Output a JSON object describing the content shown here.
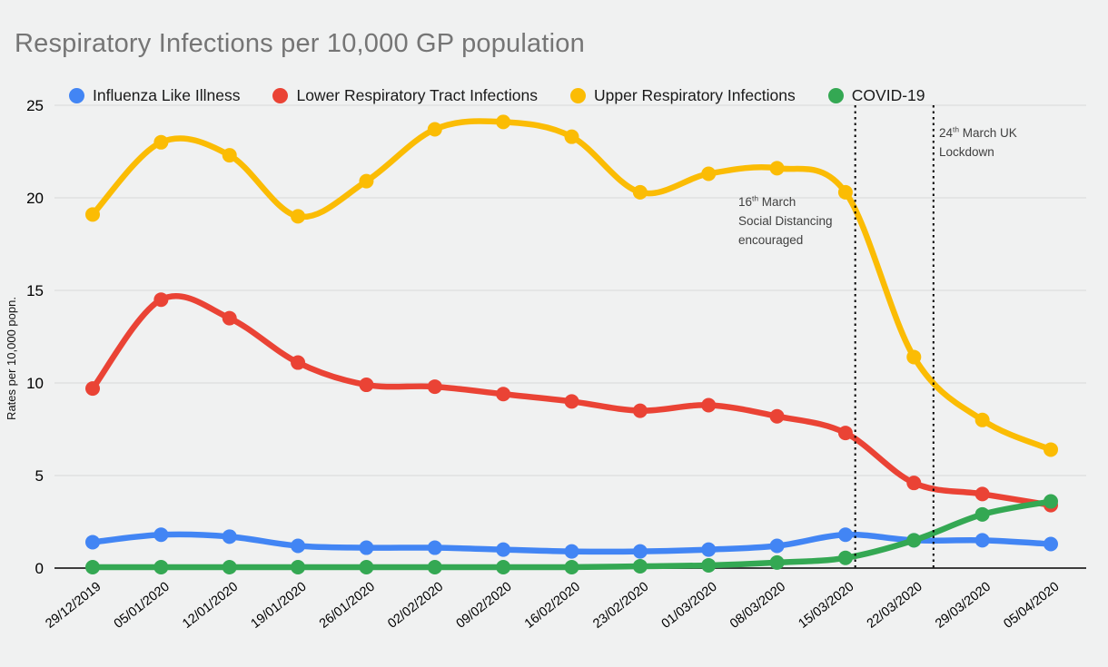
{
  "chart_data": {
    "type": "line",
    "title": "Respiratory Infections per 10,000 GP population",
    "xlabel": "",
    "ylabel": "Rates per 10,000 popn.",
    "ylim": [
      0,
      25
    ],
    "yticks": [
      0,
      5,
      10,
      15,
      20,
      25
    ],
    "grid": true,
    "smooth": true,
    "legend_position": "top",
    "background_color": "#f0f1f1",
    "gridline_color": "#d9d9d9",
    "axis_color": "#3d3d3d",
    "title_color": "#757575",
    "categories": [
      "29/12/2019",
      "05/01/2020",
      "12/01/2020",
      "19/01/2020",
      "26/01/2020",
      "02/02/2020",
      "09/02/2020",
      "16/02/2020",
      "23/02/2020",
      "01/03/2020",
      "08/03/2020",
      "15/03/2020",
      "22/03/2020",
      "29/03/2020",
      "05/04/2020"
    ],
    "series": [
      {
        "name": "Influenza Like Illness",
        "color": "#4285F4",
        "values": [
          1.4,
          1.8,
          1.7,
          1.2,
          1.1,
          1.1,
          1.0,
          0.9,
          0.9,
          1.0,
          1.2,
          1.8,
          1.5,
          1.5,
          1.3
        ]
      },
      {
        "name": "Lower Respiratory Tract Infections",
        "color": "#EA4335",
        "values": [
          9.7,
          14.5,
          13.5,
          11.1,
          9.9,
          9.8,
          9.4,
          9.0,
          8.5,
          8.8,
          8.2,
          7.3,
          4.6,
          4.0,
          3.4
        ]
      },
      {
        "name": "Upper Respiratory Infections",
        "color": "#FBBC04",
        "values": [
          19.1,
          23.0,
          22.3,
          19.0,
          20.9,
          23.7,
          24.1,
          23.3,
          20.3,
          21.3,
          21.6,
          20.3,
          11.4,
          8.0,
          6.4
        ]
      },
      {
        "name": "COVID-19",
        "color": "#34A853",
        "values": [
          0.05,
          0.05,
          0.05,
          0.05,
          0.05,
          0.05,
          0.05,
          0.05,
          0.1,
          0.15,
          0.3,
          0.55,
          1.5,
          2.9,
          3.6
        ]
      }
    ],
    "annotations": [
      {
        "label": "16th March Social Distancing encouraged",
        "day": "16",
        "ordinal": "th",
        "line1_rest": " March",
        "line2": "Social Distancing",
        "line3": "encouraged",
        "x_category": "15/03/2020",
        "x_offset_days": 1,
        "line_style": "dotted"
      },
      {
        "label": "24th March UK Lockdown",
        "day": "24",
        "ordinal": "th",
        "line1_rest": " March UK",
        "line2": "Lockdown",
        "x_category": "22/03/2020",
        "x_offset_days": 2,
        "line_style": "dotted"
      }
    ]
  }
}
